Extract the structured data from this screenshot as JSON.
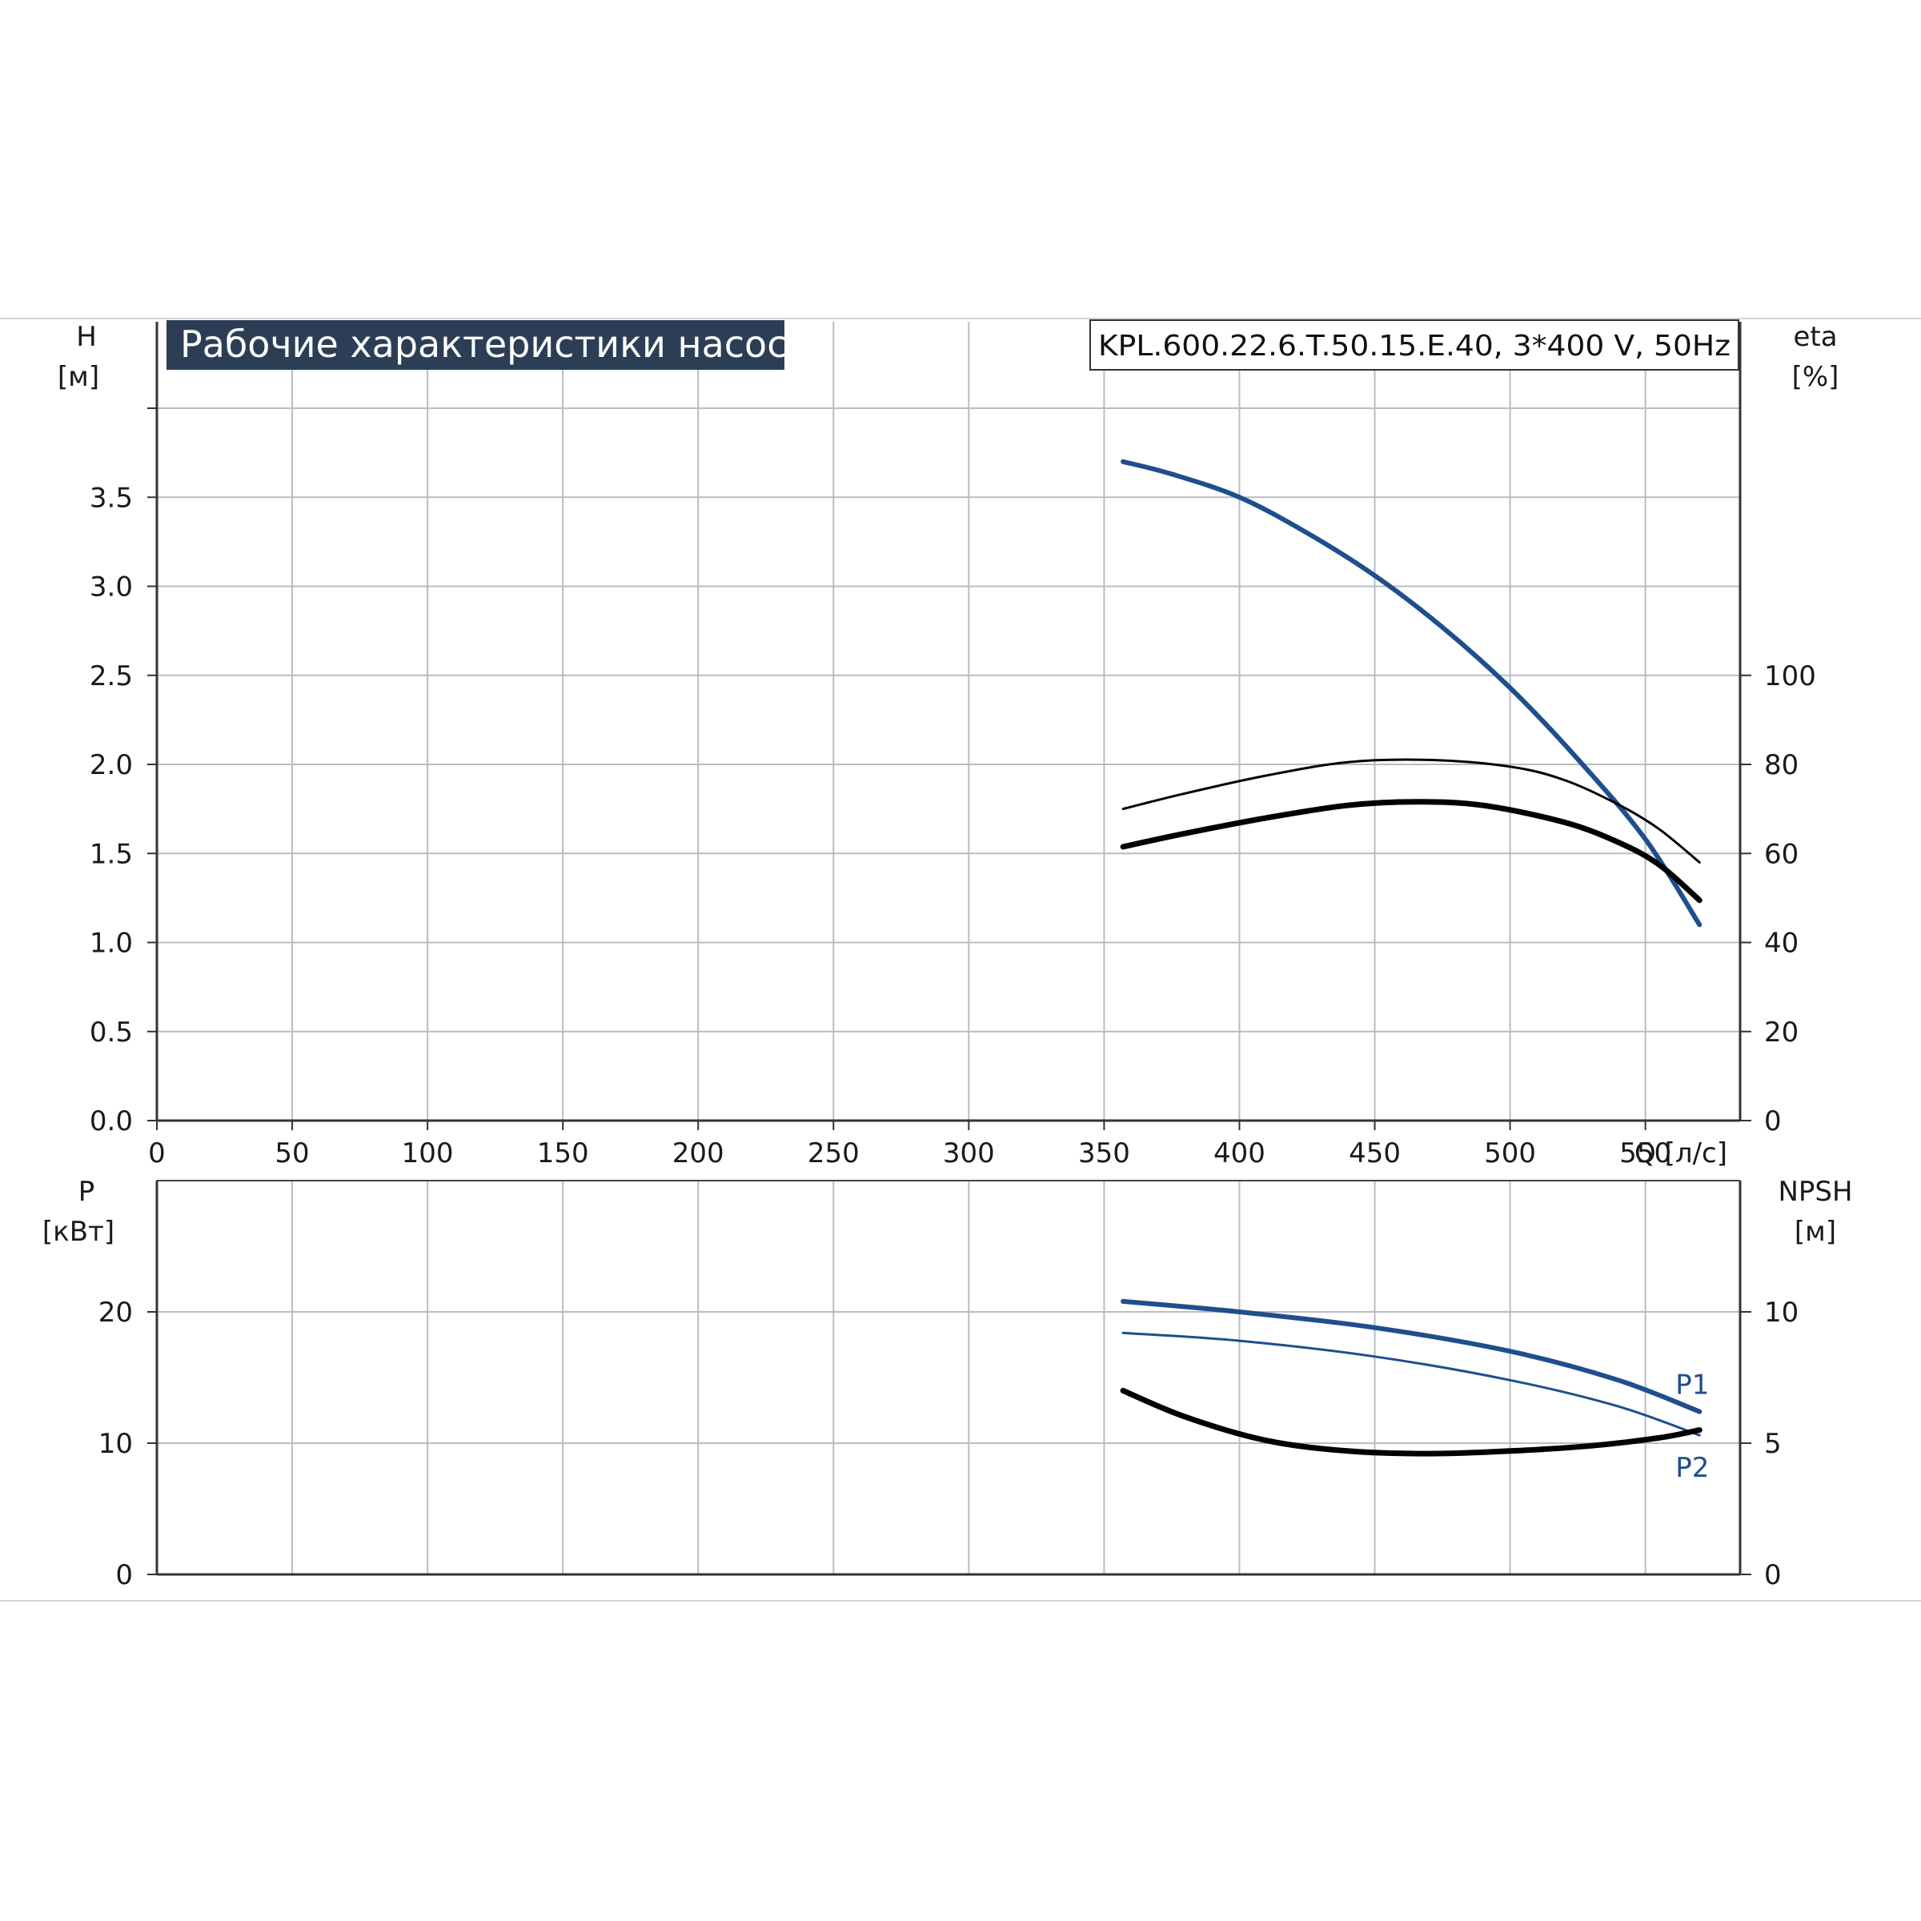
{
  "title": "Рабочие характеристики насоса",
  "model": "KPL.600.22.6.T.50.15.E.40, 3*400 V, 50Hz",
  "colors": {
    "blue": "#1f4e8c",
    "black": "#000000",
    "grid": "#b8bcc4",
    "title_bg": "#2c3e56"
  },
  "chart_data": [
    {
      "id": "top",
      "type": "line",
      "x_axis": {
        "label": "Q [л/с]",
        "range": [
          0,
          585
        ],
        "ticks": [
          0,
          50,
          100,
          150,
          200,
          250,
          300,
          350,
          400,
          450,
          500,
          550
        ]
      },
      "y_left": {
        "label_top": "H",
        "label_unit": "[м]",
        "range": [
          0,
          4.0
        ],
        "ticks": [
          "0.0",
          "0.5",
          "1.0",
          "1.5",
          "2.0",
          "2.5",
          "3.0",
          "3.5"
        ]
      },
      "y_right": {
        "label_top": "eta",
        "label_unit": "[%]",
        "range": [
          0,
          160
        ],
        "ticks": [
          "0",
          "20",
          "40",
          "60",
          "80",
          "100"
        ]
      },
      "grid": true,
      "series": [
        {
          "axis": "left",
          "color": "blue",
          "width": 6,
          "x": [
            357,
            375,
            400,
            425,
            450,
            475,
            500,
            525,
            550,
            570
          ],
          "y": [
            3.7,
            3.63,
            3.5,
            3.3,
            3.06,
            2.77,
            2.43,
            2.03,
            1.58,
            1.1
          ]
        },
        {
          "axis": "right",
          "color": "black",
          "width": 3,
          "x": [
            357,
            380,
            410,
            440,
            470,
            500,
            520,
            540,
            555,
            570
          ],
          "y": [
            70.0,
            73.5,
            77.5,
            80.5,
            81.0,
            79.5,
            76.5,
            71.0,
            65.5,
            58.0
          ]
        },
        {
          "axis": "right",
          "color": "black",
          "width": 7,
          "x": [
            357,
            380,
            410,
            440,
            465,
            490,
            520,
            540,
            555,
            570
          ],
          "y": [
            61.5,
            64.5,
            68.0,
            70.8,
            71.6,
            70.8,
            67.0,
            62.5,
            57.5,
            49.5
          ]
        }
      ]
    },
    {
      "id": "bottom",
      "type": "line",
      "x_axis": {
        "range": [
          0,
          585
        ]
      },
      "y_left": {
        "label_top": "P",
        "label_unit": "[кВт]",
        "range": [
          0,
          30
        ],
        "ticks": [
          "0",
          "10",
          "20"
        ]
      },
      "y_right": {
        "label_top": "NPSH",
        "label_unit": "[м]",
        "range": [
          0,
          15
        ],
        "ticks": [
          "0",
          "5",
          "10"
        ]
      },
      "grid": true,
      "series": [
        {
          "name": "P1",
          "axis": "left",
          "color": "blue",
          "width": 6,
          "x": [
            357,
            400,
            450,
            500,
            540,
            570
          ],
          "y": [
            20.8,
            20.0,
            18.8,
            17.0,
            14.8,
            12.4
          ]
        },
        {
          "name": "P2",
          "axis": "left",
          "color": "blue",
          "width": 3,
          "x": [
            357,
            400,
            450,
            500,
            540,
            570
          ],
          "y": [
            18.4,
            17.8,
            16.6,
            14.8,
            12.8,
            10.6
          ]
        },
        {
          "axis": "right",
          "color": "black",
          "width": 7,
          "x": [
            357,
            380,
            410,
            440,
            470,
            500,
            530,
            555,
            570
          ],
          "y": [
            7.0,
            6.0,
            5.1,
            4.7,
            4.6,
            4.7,
            4.9,
            5.2,
            5.5
          ]
        }
      ]
    }
  ]
}
